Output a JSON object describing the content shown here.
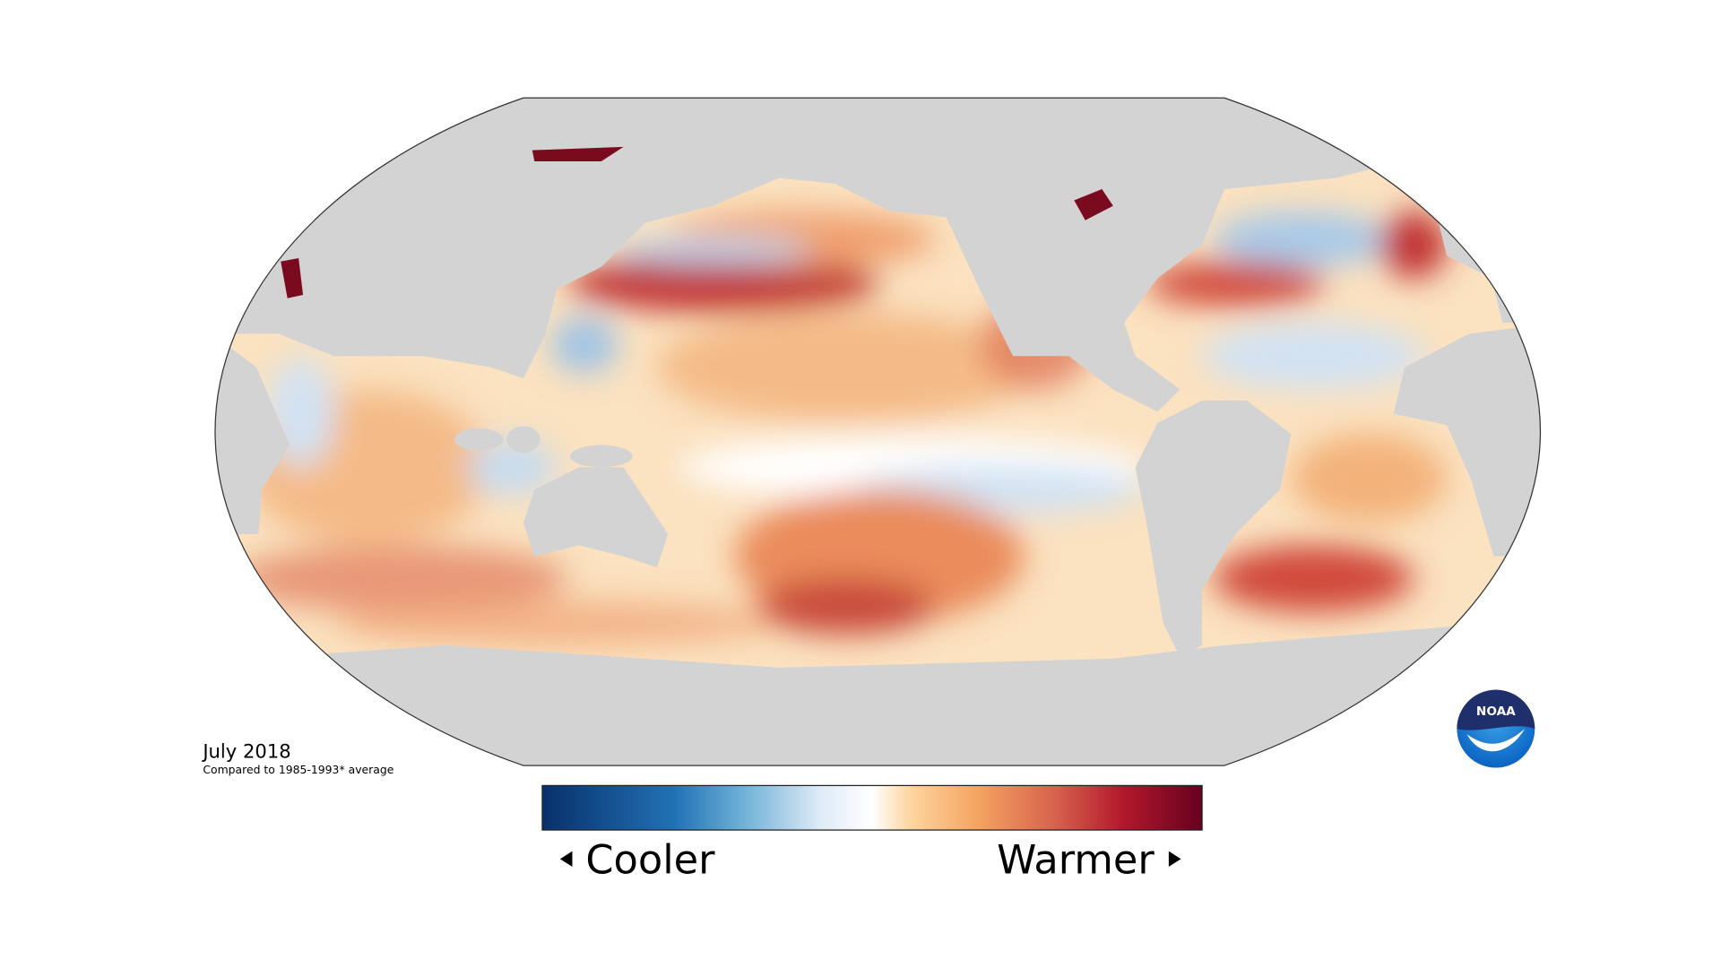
{
  "date": "July 2018",
  "subtitle": "Compared to 1985-1993* average",
  "legend": {
    "low": "Cooler",
    "high": "Warmer"
  },
  "logo": "NOAA"
}
